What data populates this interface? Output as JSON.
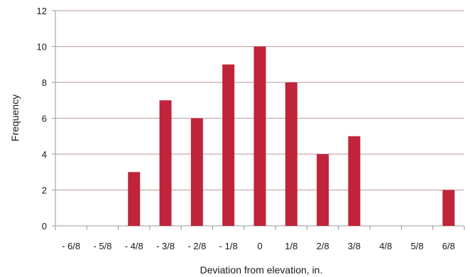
{
  "chart_data": {
    "type": "bar",
    "categories": [
      "- 6/8",
      "- 5/8",
      "- 4/8",
      "- 3/8",
      "- 2/8",
      "- 1/8",
      "0",
      "1/8",
      "2/8",
      "3/8",
      "4/8",
      "5/8",
      "6/8"
    ],
    "values": [
      0,
      0,
      3,
      7,
      6,
      9,
      10,
      8,
      4,
      5,
      0,
      0,
      2
    ],
    "xlabel": "Deviation from elevation, in.",
    "ylabel": "Frequency",
    "ylim": [
      0,
      12
    ],
    "yticks": [
      0,
      2,
      4,
      6,
      8,
      10,
      12
    ],
    "grid": true,
    "bar_color": "#c0243a",
    "grid_color": "#c9a9a9",
    "axis_color": "#999999"
  }
}
